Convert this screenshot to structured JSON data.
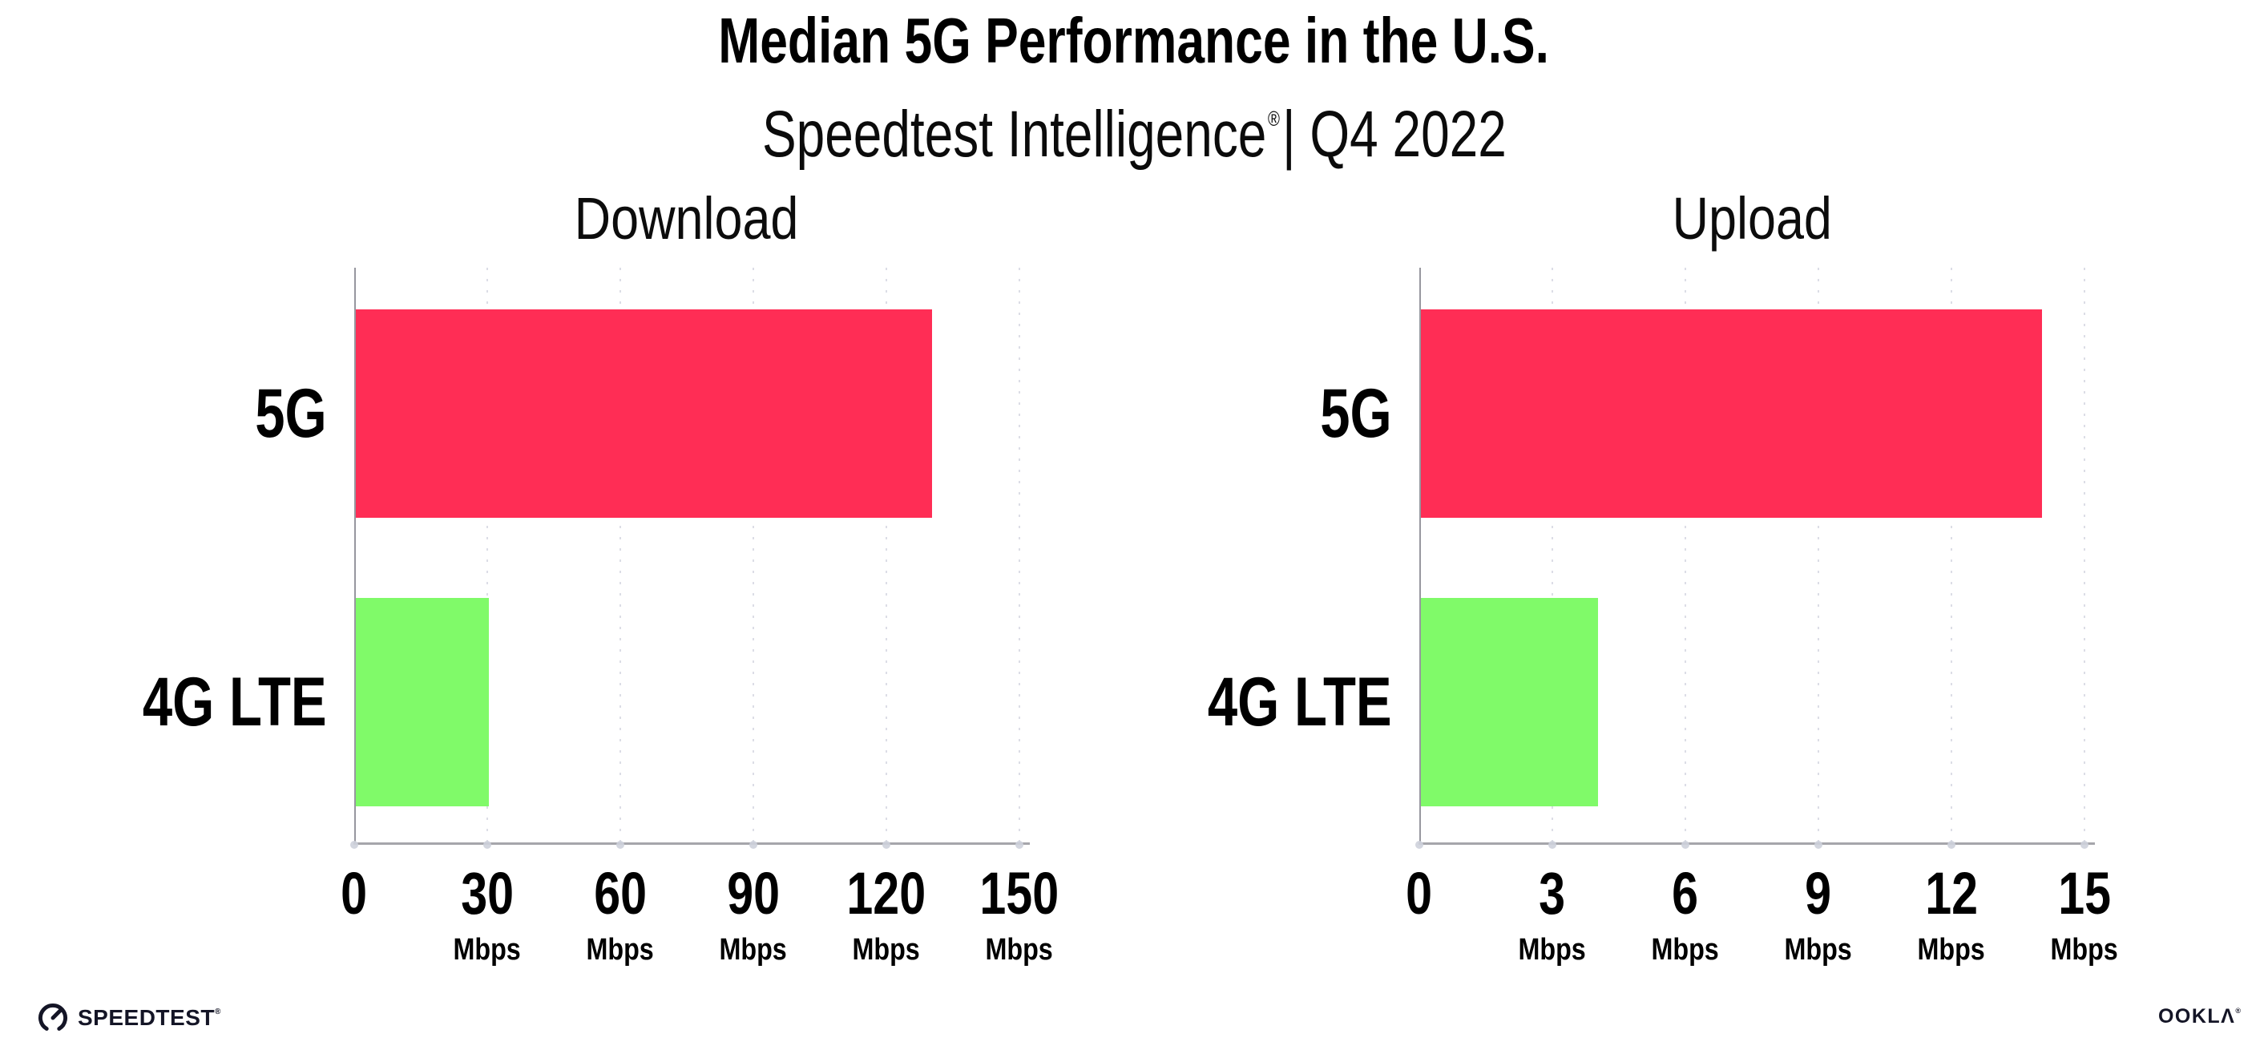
{
  "header": {
    "title": "Median 5G Performance in the U.S.",
    "subtitle_brand": "Speedtest Intelligence",
    "subtitle_mark": "®",
    "subtitle_rest": "| Q4 2022"
  },
  "chart_data": [
    {
      "type": "bar",
      "orientation": "horizontal",
      "title": "Download",
      "categories": [
        "5G",
        "4G LTE"
      ],
      "values": [
        130,
        30
      ],
      "unit": "Mbps",
      "xlim": [
        0,
        150
      ],
      "xticks": [
        0,
        30,
        60,
        90,
        120,
        150
      ],
      "grid": "vertical-dotted",
      "legend": "none",
      "bar_colors": [
        "#ff2d55",
        "#80fa69"
      ]
    },
    {
      "type": "bar",
      "orientation": "horizontal",
      "title": "Upload",
      "categories": [
        "5G",
        "4G LTE"
      ],
      "values": [
        14,
        4
      ],
      "unit": "Mbps",
      "xlim": [
        0,
        15
      ],
      "xticks": [
        0,
        3,
        6,
        9,
        12,
        15
      ],
      "grid": "vertical-dotted",
      "legend": "none",
      "bar_colors": [
        "#ff2d55",
        "#80fa69"
      ]
    }
  ],
  "colors": {
    "bar_5g": "#ff2d55",
    "bar_4g_lte": "#80fa69",
    "gridline": "#dcdde6",
    "y_axis": "#97979f",
    "x_axis": "#a6a6ab",
    "text": "#000000",
    "logo": "#141526",
    "background": "#ffffff"
  },
  "footer": {
    "speedtest_label": "SPEEDTEST",
    "speedtest_mark": "®",
    "ookla_label": "OOKLΛ",
    "ookla_mark": "®"
  }
}
